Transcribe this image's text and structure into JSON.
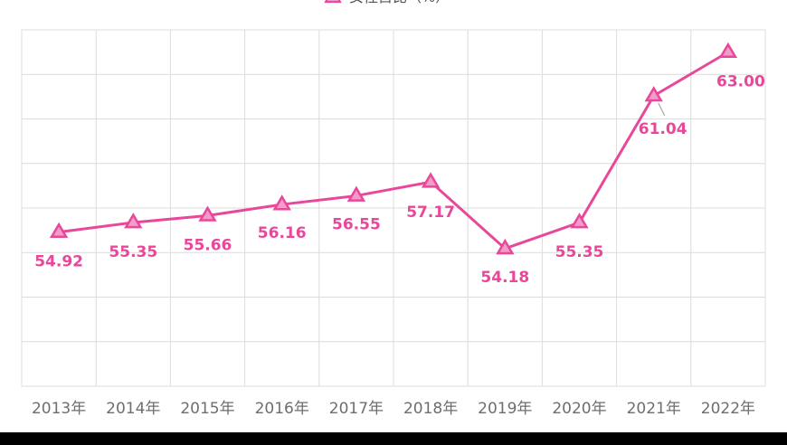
{
  "colors": {
    "series": "#e8479a",
    "marker_fill": "#f29cc8",
    "grid": "#dcdcdc",
    "leader": "#999999"
  },
  "chart_data": {
    "type": "line",
    "x": [
      "2013年",
      "2014年",
      "2015年",
      "2016年",
      "2017年",
      "2018年",
      "2019年",
      "2020年",
      "2021年",
      "2022年"
    ],
    "series": [
      {
        "name": "女性占比（%）",
        "marker": "triangle",
        "values": [
          54.92,
          55.35,
          55.66,
          56.16,
          56.55,
          57.17,
          54.18,
          55.35,
          61.04,
          63.0
        ],
        "labels": [
          "54.92",
          "55.35",
          "55.66",
          "56.16",
          "56.55",
          "57.17",
          "54.18",
          "55.35",
          "61.04",
          "63.00"
        ]
      }
    ],
    "ylim": [
      48,
      64
    ],
    "grid": true,
    "legend": "top-center",
    "title": "",
    "xlabel": "",
    "ylabel": ""
  }
}
